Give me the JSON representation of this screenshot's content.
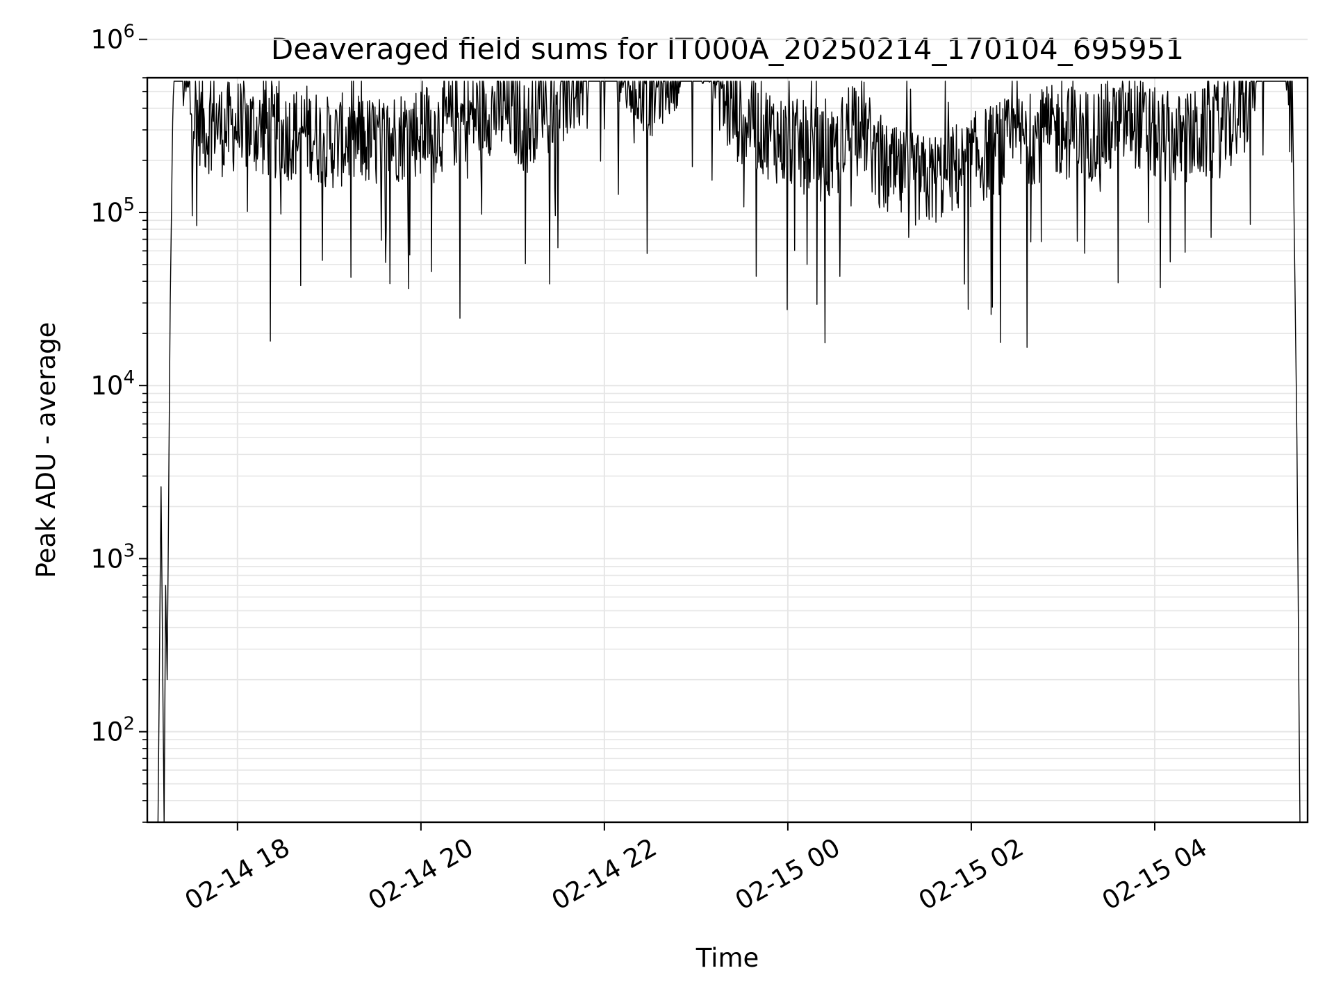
{
  "chart_data": {
    "type": "line",
    "title": "Deaveraged field sums for IT000A_20250214_170104_695951",
    "xlabel": "Time",
    "ylabel": "Peak ADU - average",
    "yscale": "log",
    "ylim": [
      30,
      600000
    ],
    "xlim": [
      "2025-02-14 17:01",
      "2025-02-15 05:40"
    ],
    "grid": true,
    "x_ticks": [
      {
        "value": "2025-02-14 18:00",
        "label": "02-14 18"
      },
      {
        "value": "2025-02-14 20:00",
        "label": "02-14 20"
      },
      {
        "value": "2025-02-14 22:00",
        "label": "02-14 22"
      },
      {
        "value": "2025-02-15 00:00",
        "label": "02-15 00"
      },
      {
        "value": "2025-02-15 02:00",
        "label": "02-15 02"
      },
      {
        "value": "2025-02-15 04:00",
        "label": "02-15 04"
      }
    ],
    "y_ticks": [
      {
        "value": 100,
        "base": "10",
        "exp": "2"
      },
      {
        "value": 1000,
        "base": "10",
        "exp": "3"
      },
      {
        "value": 10000,
        "base": "10",
        "exp": "4"
      },
      {
        "value": 100000,
        "base": "10",
        "exp": "5"
      },
      {
        "value": 1000000,
        "base": "10",
        "exp": "6"
      }
    ],
    "series": [
      {
        "color": "#000000",
        "x": [
          "2025-02-14 17:08",
          "2025-02-14 17:10",
          "2025-02-14 17:12",
          "2025-02-14 17:13",
          "2025-02-14 17:14",
          "2025-02-14 17:16",
          "2025-02-14 17:18",
          "2025-02-14 17:19",
          "2025-02-14 17:20",
          "2025-02-14 17:25",
          "2025-02-14 17:30",
          "2025-02-14 17:35",
          "2025-02-14 17:40",
          "2025-02-14 17:45",
          "2025-02-14 17:50",
          "2025-02-14 18:00",
          "2025-02-14 18:15",
          "2025-02-14 18:30",
          "2025-02-14 18:45",
          "2025-02-14 19:00",
          "2025-02-14 19:15",
          "2025-02-14 19:30",
          "2025-02-14 19:45",
          "2025-02-14 20:00",
          "2025-02-14 20:15",
          "2025-02-14 20:30",
          "2025-02-14 20:45",
          "2025-02-14 21:00",
          "2025-02-14 21:10",
          "2025-02-14 21:20",
          "2025-02-14 21:30",
          "2025-02-14 21:45",
          "2025-02-14 21:55",
          "2025-02-14 22:05",
          "2025-02-14 22:15",
          "2025-02-14 22:30",
          "2025-02-14 22:45",
          "2025-02-14 23:00",
          "2025-02-14 23:10",
          "2025-02-14 23:20",
          "2025-02-14 23:30",
          "2025-02-14 23:45",
          "2025-02-15 00:00",
          "2025-02-15 00:15",
          "2025-02-15 00:30",
          "2025-02-15 00:45",
          "2025-02-15 01:00",
          "2025-02-15 01:15",
          "2025-02-15 01:30",
          "2025-02-15 01:45",
          "2025-02-15 02:00",
          "2025-02-15 02:15",
          "2025-02-15 02:30",
          "2025-02-15 02:45",
          "2025-02-15 03:00",
          "2025-02-15 03:15",
          "2025-02-15 03:30",
          "2025-02-15 03:45",
          "2025-02-15 04:00",
          "2025-02-15 04:15",
          "2025-02-15 04:30",
          "2025-02-15 04:45",
          "2025-02-15 05:00",
          "2025-02-15 05:10",
          "2025-02-15 05:20",
          "2025-02-15 05:30",
          "2025-02-15 05:33",
          "2025-02-15 05:35"
        ],
        "y": [
          30,
          2600,
          30,
          700,
          200,
          30000,
          600000,
          900000,
          1000000,
          600000,
          400000,
          350000,
          300000,
          350000,
          300000,
          320000,
          300000,
          280000,
          300000,
          250000,
          270000,
          250000,
          280000,
          300000,
          320000,
          350000,
          400000,
          380000,
          300000,
          500000,
          450000,
          550000,
          1500000,
          800000,
          600000,
          500000,
          700000,
          1200000,
          800000,
          400000,
          350000,
          300000,
          250000,
          230000,
          200000,
          400000,
          180000,
          160000,
          150000,
          170000,
          200000,
          230000,
          260000,
          280000,
          300000,
          280000,
          300000,
          350000,
          280000,
          260000,
          280000,
          300000,
          400000,
          1000000,
          1100000,
          600000,
          5000,
          30
        ]
      }
    ]
  }
}
